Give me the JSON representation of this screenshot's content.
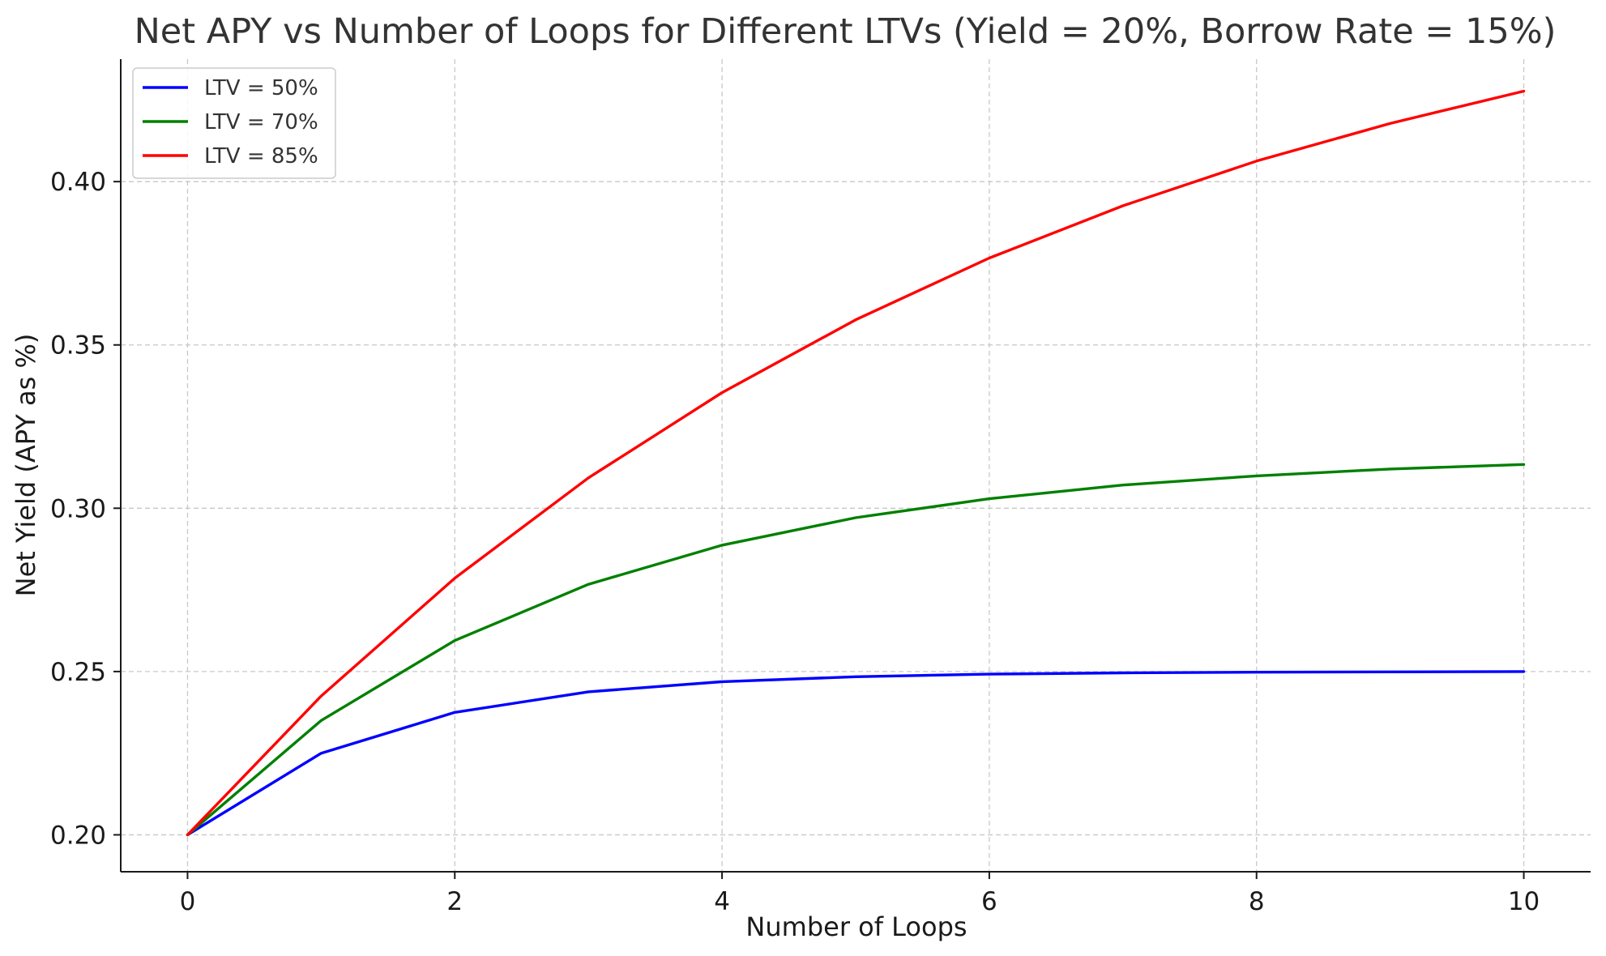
{
  "chart_data": {
    "type": "line",
    "title": "Net APY vs Number of Loops for Different LTVs (Yield = 20%, Borrow Rate = 15%)",
    "xlabel": "Number of Loops",
    "ylabel": "Net Yield (APY as %)",
    "x": [
      0,
      1,
      2,
      3,
      4,
      5,
      6,
      7,
      8,
      9,
      10
    ],
    "xlim": [
      -0.5,
      10.5
    ],
    "ylim": [
      0.1887,
      0.4375
    ],
    "xticks": [
      0,
      2,
      4,
      6,
      8,
      10
    ],
    "xtick_labels": [
      "0",
      "2",
      "4",
      "6",
      "8",
      "10"
    ],
    "yticks": [
      0.2,
      0.25,
      0.3,
      0.35,
      0.4
    ],
    "ytick_labels": [
      "0.20",
      "0.25",
      "0.30",
      "0.35",
      "0.40"
    ],
    "grid": true,
    "legend_position": "top-left",
    "series": [
      {
        "name": "LTV = 50%",
        "color": "#0000ff",
        "values": [
          0.2,
          0.225,
          0.2375,
          0.2438,
          0.2469,
          0.2484,
          0.2492,
          0.2496,
          0.2498,
          0.2499,
          0.25
        ]
      },
      {
        "name": "LTV = 70%",
        "color": "#008000",
        "values": [
          0.2,
          0.235,
          0.2595,
          0.2767,
          0.2887,
          0.2971,
          0.3029,
          0.3071,
          0.3099,
          0.312,
          0.3134
        ]
      },
      {
        "name": "LTV = 85%",
        "color": "#ff0000",
        "values": [
          0.2,
          0.2425,
          0.2786,
          0.3093,
          0.3354,
          0.3577,
          0.3766,
          0.3926,
          0.4063,
          0.4178,
          0.4277
        ]
      }
    ]
  }
}
